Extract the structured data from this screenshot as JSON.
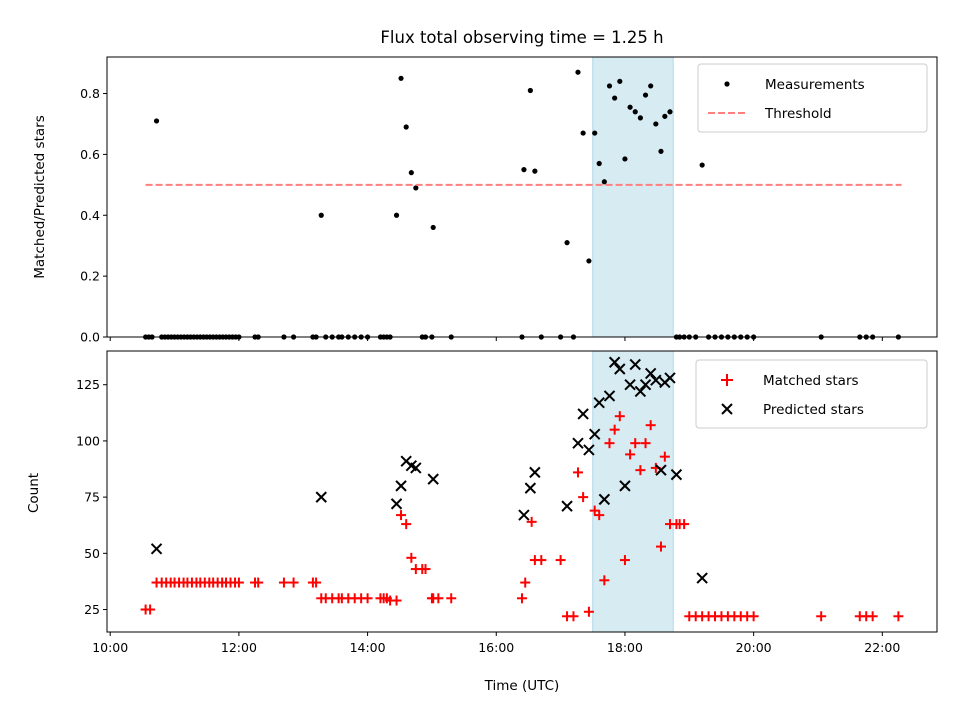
{
  "chart_data": [
    {
      "type": "scatter",
      "title": "Flux total observing time = 1.25 h",
      "xlabel": "",
      "ylabel": "Matched/Predicted stars",
      "xlim": [
        9.95,
        22.85
      ],
      "ylim": [
        0.0,
        0.92
      ],
      "y_ticks": [
        0.0,
        0.2,
        0.4,
        0.6,
        0.8
      ],
      "y_tick_labels": [
        "0.0",
        "0.2",
        "0.4",
        "0.6",
        "0.8"
      ],
      "grid": false,
      "legend_position": "top-right",
      "highlight_span": {
        "x0": 17.5,
        "x1": 18.75,
        "color": "#add8e6"
      },
      "series": [
        {
          "name": "Measurements",
          "marker": "dot",
          "color": "#000000",
          "x": [
            10.55,
            10.6,
            10.65,
            10.72,
            10.8,
            10.85,
            10.9,
            10.95,
            11.0,
            11.05,
            11.1,
            11.15,
            11.2,
            11.25,
            11.3,
            11.35,
            11.4,
            11.45,
            11.5,
            11.55,
            11.6,
            11.65,
            11.7,
            11.75,
            11.8,
            11.85,
            11.9,
            11.95,
            12.0,
            12.25,
            12.3,
            12.7,
            12.85,
            13.15,
            13.2,
            13.28,
            13.35,
            13.45,
            13.55,
            13.6,
            13.7,
            13.8,
            13.9,
            14.0,
            14.2,
            14.25,
            14.3,
            14.35,
            14.45,
            14.52,
            14.6,
            14.68,
            14.75,
            14.85,
            14.9,
            15.0,
            15.02,
            15.3,
            16.4,
            16.43,
            16.53,
            16.6,
            16.7,
            17.0,
            17.1,
            17.2,
            17.27,
            17.35,
            17.44,
            17.53,
            17.6,
            17.68,
            17.76,
            17.84,
            17.92,
            18.0,
            18.08,
            18.16,
            18.24,
            18.32,
            18.4,
            18.48,
            18.56,
            18.62,
            18.7,
            18.8,
            18.85,
            18.92,
            19.0,
            19.1,
            19.2,
            19.3,
            19.4,
            19.5,
            19.6,
            19.7,
            19.8,
            19.9,
            20.0,
            21.05,
            21.65,
            21.75,
            21.85,
            22.25
          ],
          "y": [
            0.0,
            0.0,
            0.0,
            0.71,
            0.0,
            0.0,
            0.0,
            0.0,
            0.0,
            0.0,
            0.0,
            0.0,
            0.0,
            0.0,
            0.0,
            0.0,
            0.0,
            0.0,
            0.0,
            0.0,
            0.0,
            0.0,
            0.0,
            0.0,
            0.0,
            0.0,
            0.0,
            0.0,
            0.0,
            0.0,
            0.0,
            0.0,
            0.0,
            0.0,
            0.0,
            0.4,
            0.0,
            0.0,
            0.0,
            0.0,
            0.0,
            0.0,
            0.0,
            0.0,
            0.0,
            0.0,
            0.0,
            0.0,
            0.4,
            0.85,
            0.69,
            0.54,
            0.49,
            0.0,
            0.0,
            0.0,
            0.36,
            0.0,
            0.0,
            0.55,
            0.81,
            0.545,
            0.0,
            0.0,
            0.31,
            0.0,
            0.87,
            0.67,
            0.25,
            0.67,
            0.57,
            0.51,
            0.825,
            0.785,
            0.84,
            0.585,
            0.755,
            0.74,
            0.72,
            0.795,
            0.825,
            0.7,
            0.61,
            0.725,
            0.74,
            0.0,
            0.0,
            0.0,
            0.0,
            0.0,
            0.565,
            0.0,
            0.0,
            0.0,
            0.0,
            0.0,
            0.0,
            0.0,
            0.0,
            0.0,
            0.0,
            0.0,
            0.0,
            0.0
          ]
        },
        {
          "name": "Threshold",
          "marker": "dashed-line",
          "color": "#ff7f7f",
          "x": [
            10.55,
            22.3
          ],
          "y": [
            0.5,
            0.5
          ]
        }
      ]
    },
    {
      "type": "scatter",
      "title": "",
      "xlabel": "Time (UTC)",
      "ylabel": "Count",
      "xlim": [
        9.95,
        22.85
      ],
      "ylim": [
        15,
        140
      ],
      "x_ticks": [
        10,
        12,
        14,
        16,
        18,
        20,
        22
      ],
      "x_tick_labels": [
        "10:00",
        "12:00",
        "14:00",
        "16:00",
        "18:00",
        "20:00",
        "22:00"
      ],
      "y_ticks": [
        25,
        50,
        75,
        100,
        125
      ],
      "y_tick_labels": [
        "25",
        "50",
        "75",
        "100",
        "125"
      ],
      "grid": false,
      "legend_position": "top-right",
      "highlight_span": {
        "x0": 17.5,
        "x1": 18.75,
        "color": "#add8e6"
      },
      "series": [
        {
          "name": "Matched stars",
          "marker": "plus",
          "color": "#ff0000",
          "x": [
            10.55,
            10.62,
            10.72,
            10.8,
            10.87,
            10.94,
            11.0,
            11.07,
            11.14,
            11.2,
            11.27,
            11.34,
            11.4,
            11.47,
            11.54,
            11.6,
            11.67,
            11.74,
            11.8,
            11.87,
            11.94,
            12.0,
            12.25,
            12.3,
            12.7,
            12.85,
            13.15,
            13.2,
            13.28,
            13.35,
            13.45,
            13.55,
            13.6,
            13.7,
            13.8,
            13.9,
            14.0,
            14.2,
            14.25,
            14.3,
            14.35,
            14.45,
            14.52,
            14.6,
            14.68,
            14.75,
            14.85,
            14.9,
            15.0,
            15.02,
            15.1,
            15.3,
            16.4,
            16.45,
            16.55,
            16.6,
            16.7,
            17.0,
            17.1,
            17.2,
            17.27,
            17.35,
            17.44,
            17.53,
            17.6,
            17.68,
            17.76,
            17.84,
            17.92,
            18.0,
            18.08,
            18.16,
            18.24,
            18.32,
            18.4,
            18.48,
            18.56,
            18.62,
            18.7,
            18.8,
            18.85,
            18.92,
            19.0,
            19.1,
            19.2,
            19.3,
            19.4,
            19.5,
            19.6,
            19.7,
            19.8,
            19.9,
            20.0,
            21.05,
            21.65,
            21.75,
            21.85,
            22.25
          ],
          "y": [
            25,
            25,
            37,
            37,
            37,
            37,
            37,
            37,
            37,
            37,
            37,
            37,
            37,
            37,
            37,
            37,
            37,
            37,
            37,
            37,
            37,
            37,
            37,
            37,
            37,
            37,
            37,
            37,
            30,
            30,
            30,
            30,
            30,
            30,
            30,
            30,
            30,
            30,
            30,
            30,
            29,
            29,
            67,
            63,
            48,
            43,
            43,
            43,
            30,
            30,
            30,
            30,
            30,
            37,
            64,
            47,
            47,
            47,
            22,
            22,
            86,
            75,
            24,
            69,
            67,
            38,
            99,
            105,
            111,
            47,
            94,
            99,
            87,
            99,
            107,
            88,
            53,
            93,
            63,
            63,
            63,
            63,
            22,
            22,
            22,
            22,
            22,
            22,
            22,
            22,
            22,
            22,
            22,
            22,
            22,
            22,
            22,
            22
          ],
          "y_fix_note": ""
        },
        {
          "name": "Predicted stars",
          "marker": "x",
          "color": "#000000",
          "x": [
            10.72,
            13.28,
            14.45,
            14.52,
            14.6,
            14.68,
            14.75,
            15.02,
            16.43,
            16.53,
            16.6,
            17.1,
            17.27,
            17.35,
            17.44,
            17.53,
            17.6,
            17.68,
            17.76,
            17.84,
            17.92,
            18.0,
            18.08,
            18.16,
            18.24,
            18.32,
            18.4,
            18.48,
            18.56,
            18.62,
            18.7,
            18.8,
            19.2
          ],
          "y": [
            52,
            75,
            72,
            80,
            91,
            89,
            88,
            83,
            67,
            79,
            86,
            71,
            99,
            112,
            96,
            103,
            117,
            74,
            120,
            135,
            132,
            80,
            125,
            134,
            122,
            125,
            130,
            127,
            87,
            126,
            128,
            85,
            39
          ]
        }
      ]
    }
  ]
}
